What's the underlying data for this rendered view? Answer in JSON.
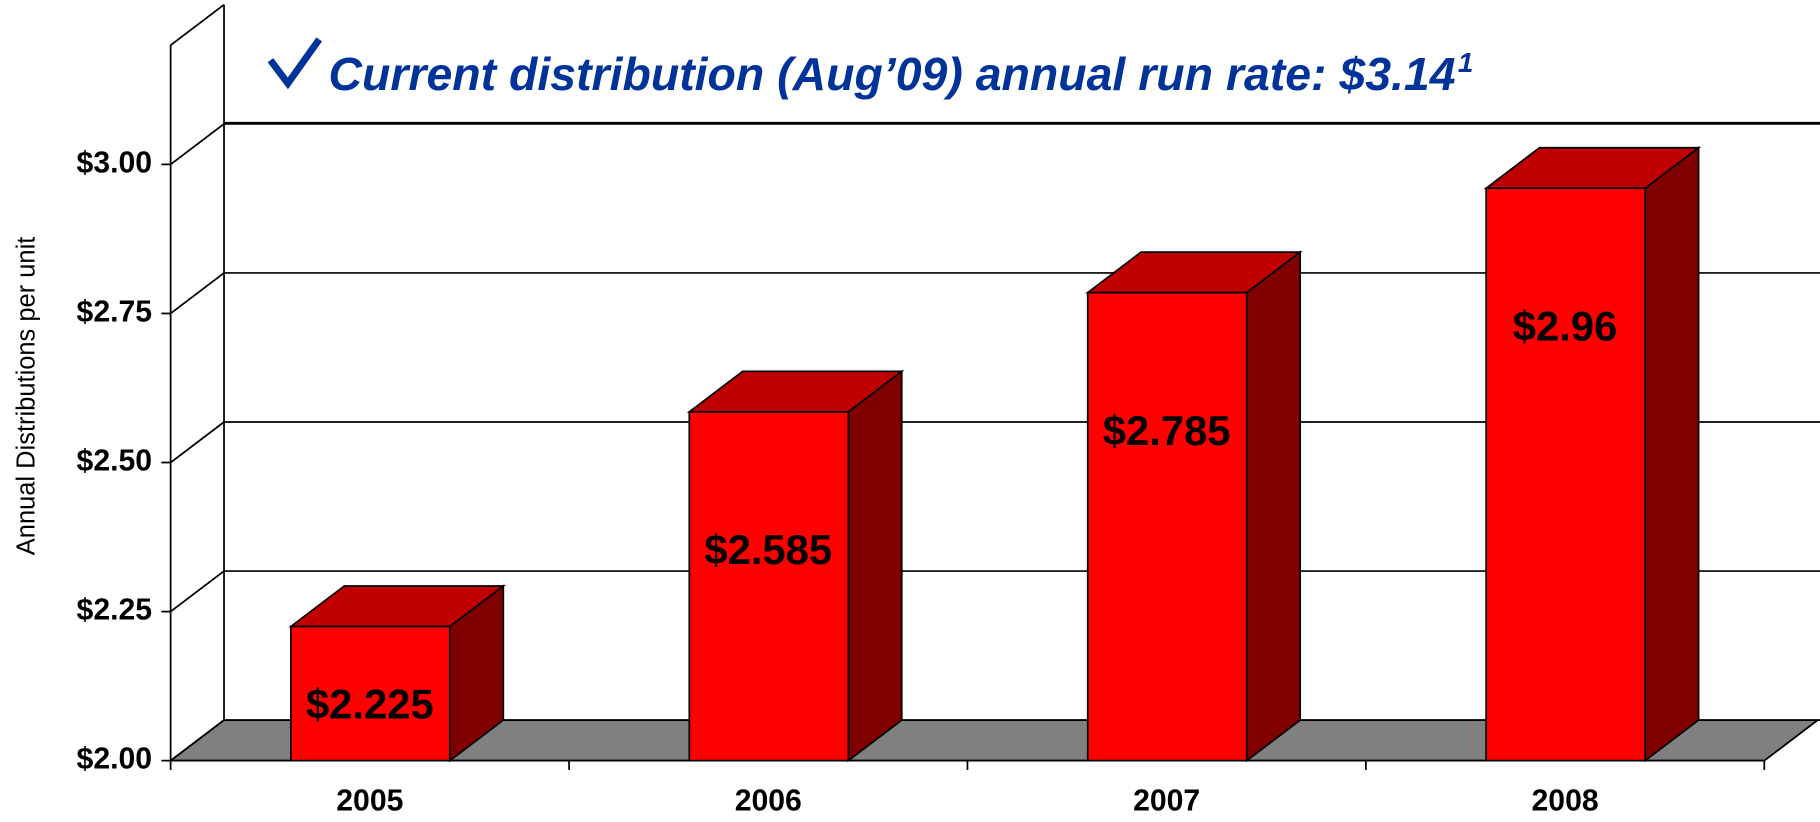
{
  "chart_data": {
    "type": "bar3d",
    "annotation": "Current distribution (Aug’09) annual run rate: $3.14",
    "annotation_note": "1",
    "ylabel": "Annual Distributions per unit",
    "categories": [
      "2005",
      "2006",
      "2007",
      "2008"
    ],
    "values": [
      2.225,
      2.585,
      2.785,
      2.96
    ],
    "value_labels": [
      "$2.225",
      "$2.585",
      "$2.785",
      "$2.96"
    ],
    "color": "#ff0000",
    "ylim": [
      2,
      3.2
    ],
    "yticks": [
      {
        "value": 2,
        "label": "$2.00"
      },
      {
        "value": 2.25,
        "label": "$2.25"
      },
      {
        "value": 2.5,
        "label": "$2.50"
      },
      {
        "value": 2.75,
        "label": "$2.75"
      },
      {
        "value": 3,
        "label": "$3.00"
      }
    ],
    "grid": true
  }
}
